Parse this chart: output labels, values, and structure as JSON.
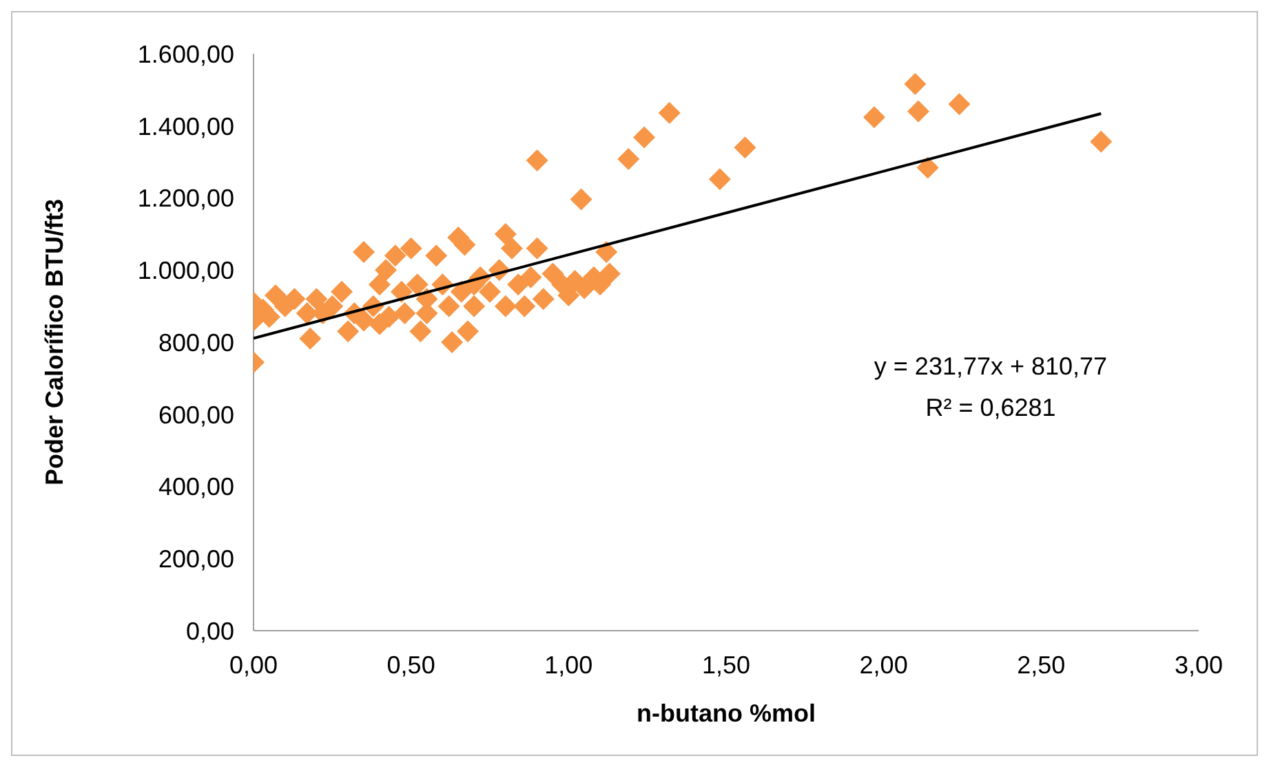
{
  "chart_data": {
    "type": "scatter",
    "xlabel": "n-butano %mol",
    "ylabel": "Poder Calorífico BTU/ft3",
    "xlim": [
      0,
      3
    ],
    "ylim": [
      0,
      1600
    ],
    "xticks": [
      {
        "value": 0,
        "label": "0,00"
      },
      {
        "value": 0.5,
        "label": "0,50"
      },
      {
        "value": 1,
        "label": "1,00"
      },
      {
        "value": 1.5,
        "label": "1,50"
      },
      {
        "value": 2,
        "label": "2,00"
      },
      {
        "value": 2.5,
        "label": "2,50"
      },
      {
        "value": 3,
        "label": "3,00"
      }
    ],
    "yticks": [
      {
        "value": 0,
        "label": "0,00"
      },
      {
        "value": 200,
        "label": "200,00"
      },
      {
        "value": 400,
        "label": "400,00"
      },
      {
        "value": 600,
        "label": "600,00"
      },
      {
        "value": 800,
        "label": "800,00"
      },
      {
        "value": 1000,
        "label": "1.000,00"
      },
      {
        "value": 1200,
        "label": "1.200,00"
      },
      {
        "value": 1400,
        "label": "1.400,00"
      },
      {
        "value": 1600,
        "label": "1.600,00"
      }
    ],
    "grid": false,
    "legend": false,
    "annotations": [
      "y = 231,77x + 810,77",
      "R² = 0,6281"
    ],
    "series": [
      {
        "color": "#f79646",
        "marker": "diamond",
        "x": [
          0,
          0,
          0.05,
          0,
          0.03,
          0.07,
          0.1,
          0.13,
          0.17,
          0.18,
          0.2,
          0.22,
          0.25,
          0.28,
          0.3,
          0.32,
          0.35,
          0.35,
          0.38,
          0.4,
          0.4,
          0.42,
          0.43,
          0.45,
          0.47,
          0.48,
          0.5,
          0.52,
          0.53,
          0.55,
          0.55,
          0.58,
          0.6,
          0.62,
          0.63,
          0.65,
          0.66,
          0.67,
          0.68,
          0.7,
          0.7,
          0.72,
          0.75,
          0.78,
          0.8,
          0.8,
          0.82,
          0.84,
          0.86,
          0.88,
          0.9,
          0.9,
          0.92,
          0.95,
          0.98,
          1,
          1.02,
          1.04,
          1.05,
          1.08,
          1.1,
          1.12,
          1.13,
          1.19,
          1.24,
          1.32,
          1.48,
          1.56,
          1.97,
          2.1,
          2.11,
          2.14,
          2.24,
          2.69
        ],
        "values": [
          910,
          860,
          870,
          744,
          890,
          930,
          900,
          920,
          880,
          810,
          920,
          880,
          900,
          940,
          830,
          880,
          1050,
          860,
          900,
          960,
          850,
          1000,
          870,
          1040,
          940,
          880,
          1060,
          960,
          830,
          920,
          880,
          1040,
          960,
          900,
          800,
          1090,
          940,
          1070,
          830,
          900,
          960,
          980,
          940,
          1000,
          1100,
          900,
          1060,
          960,
          900,
          980,
          1060,
          1304,
          920,
          990,
          960,
          930,
          970,
          1196,
          950,
          980,
          960,
          1050,
          990,
          1308,
          1368,
          1436,
          1252,
          1340,
          1424,
          1516,
          1440,
          1284,
          1460,
          1356
        ]
      },
      {
        "type": "line",
        "color": "#000000",
        "marker": "none",
        "line_style": "solid",
        "x": [
          0,
          2.69
        ],
        "values": [
          811,
          1434
        ]
      }
    ]
  }
}
